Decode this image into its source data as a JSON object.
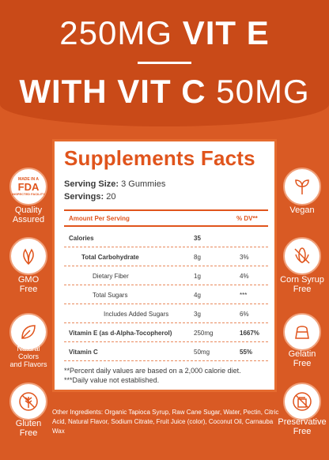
{
  "headline": {
    "line1_regular": "250MG ",
    "line1_bold": "VIT E",
    "line2_bold": "WITH VIT C ",
    "line2_regular": "50MG"
  },
  "panel": {
    "title": "Supplements Facts",
    "serving_size_label": "Serving Size:",
    "serving_size_value": " 3 Gummies",
    "servings_label": "Servings:",
    "servings_value": " 20",
    "header_left": "Amount Per Serving",
    "header_right": "% DV**",
    "rows": [
      {
        "name": "Calories",
        "amount": "35",
        "dv": ""
      },
      {
        "name": "Total Carbohydrate",
        "amount": "8g",
        "dv": "3%"
      },
      {
        "name": "Dietary Fiber",
        "amount": "1g",
        "dv": "4%"
      },
      {
        "name": "Total Sugars",
        "amount": "4g",
        "dv": "***"
      },
      {
        "name": "Includes Added Sugars",
        "amount": "3g",
        "dv": "6%"
      },
      {
        "name": "Vitamin E (as d-Alpha-Tocopherol)",
        "amount": "250mg",
        "dv": "1667%"
      },
      {
        "name": "Vitamin C",
        "amount": "50mg",
        "dv": "55%"
      }
    ],
    "note1": "**Percent daily values are based on a 2,000 calorie diet.",
    "note2": "***Daily value not established."
  },
  "ingredients": "Other Ingredients: Organic Tapioca Syrup, Raw Cane Sugar, Water, Pectin, Citric Acid, Natural Flavor, Sodium Citrate, Fruit Juice (color), Coconut Oil, Carnauba Wax",
  "badges_left": {
    "fda_top": "MADE IN A",
    "fda_mid": "FDA",
    "fda_bottom": "INSPECTED FACILITY",
    "quality_1": "Quality",
    "quality_2": "Assured",
    "gmo_1": "GMO",
    "gmo_2": "Free",
    "natural_1": "Natural",
    "natural_2": "Colors",
    "natural_3": "and Flavors",
    "gluten_1": "Gluten",
    "gluten_2": "Free"
  },
  "badges_right": {
    "vegan": "Vegan",
    "corn_1": "Corn Syrup",
    "corn_2": "Free",
    "gelatin_1": "Gelatin",
    "gelatin_2": "Free",
    "preservative_1": "Preservative",
    "preservative_2": "Free"
  },
  "colors": {
    "background": "#d95a24",
    "band": "#c94a18",
    "accent": "#e0541c"
  }
}
